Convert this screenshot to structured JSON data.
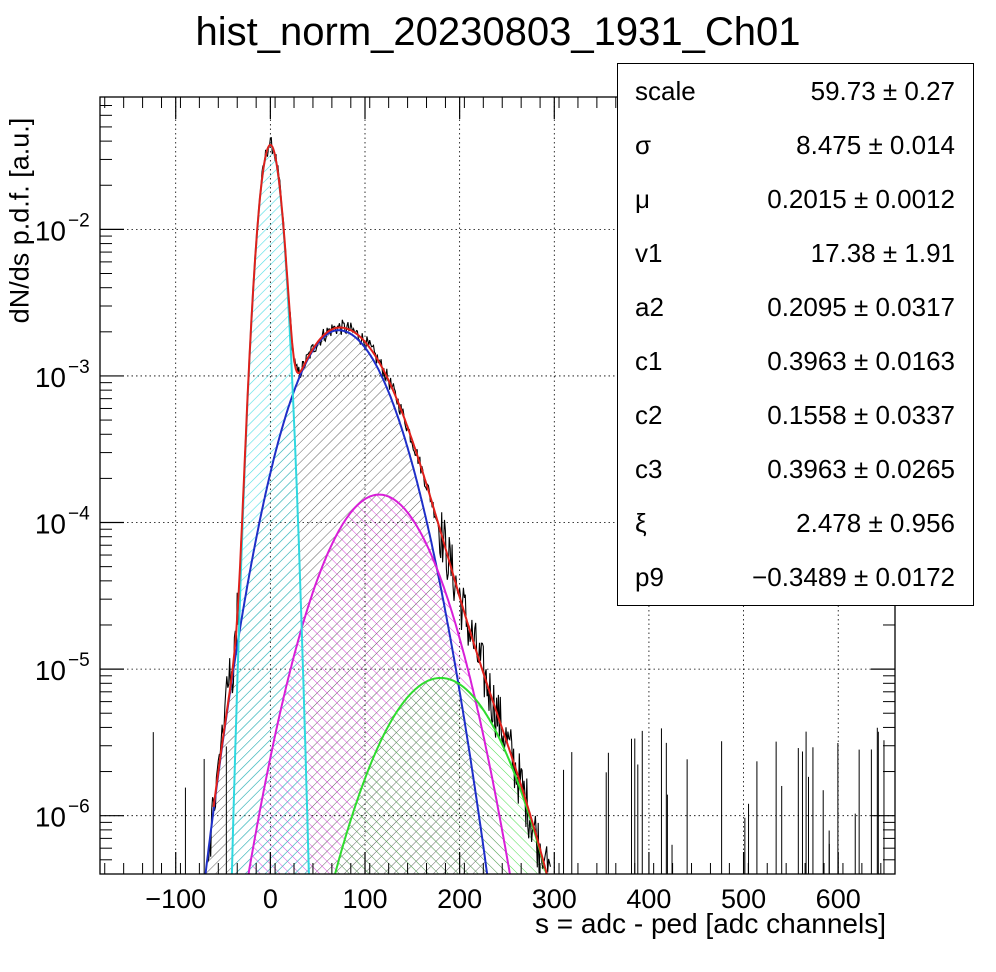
{
  "title": "hist_norm_20230803_1931_Ch01",
  "chart_data": {
    "type": "histogram",
    "xlabel": "s = adc - ped [adc channels]",
    "ylabel": "dN/ds p.d.f. [a.u.]",
    "xlim": [
      -180,
      660
    ],
    "ylim": [
      4e-07,
      0.08
    ],
    "yscale": "log",
    "grid": true,
    "x_ticks": [
      -100,
      0,
      100,
      200,
      300,
      400,
      500,
      600
    ],
    "y_ticks": [
      {
        "value": 0.01,
        "base": "10",
        "exp": "−2"
      },
      {
        "value": 0.001,
        "base": "10",
        "exp": "−3"
      },
      {
        "value": 0.0001,
        "base": "10",
        "exp": "−4"
      },
      {
        "value": 1e-05,
        "base": "10",
        "exp": "−5"
      },
      {
        "value": 1e-06,
        "base": "10",
        "exp": "−6"
      }
    ],
    "series": [
      {
        "name": "",
        "role": "data histogram",
        "color": "#000000"
      },
      {
        "name": "",
        "role": "total fit",
        "color": "#e0201b"
      },
      {
        "name": "",
        "role": "pedestal component",
        "color": "#2fd8e0",
        "fill": "hatched cyan",
        "peak": [
          0,
          0.0375
        ],
        "sigma": 8.5
      },
      {
        "name": "",
        "role": "1 p.e. component",
        "color": "#1f2fc8",
        "fill": "hatched black",
        "peak": [
          72,
          0.00205
        ]
      },
      {
        "name": "",
        "role": "2 p.e. component",
        "color": "#d81fd8",
        "fill": "hatched magenta",
        "peak": [
          115,
          0.000155
        ]
      },
      {
        "name": "",
        "role": "3 p.e. component",
        "color": "#2fdc2f",
        "fill": "hatched green",
        "peak": [
          180,
          8.7e-06
        ]
      }
    ]
  },
  "stats": [
    {
      "name": "scale",
      "value": "59.73 ± 0.27"
    },
    {
      "name": "σ",
      "value": "8.475 ± 0.014"
    },
    {
      "name": "μ",
      "value": "0.2015 ± 0.0012"
    },
    {
      "name": "v1",
      "value": "17.38 ± 1.91"
    },
    {
      "name": "a2",
      "value": "0.2095 ± 0.0317"
    },
    {
      "name": "c1",
      "value": "0.3963 ± 0.0163"
    },
    {
      "name": "c2",
      "value": "0.1558 ± 0.0337"
    },
    {
      "name": "c3",
      "value": "0.3963 ± 0.0265"
    },
    {
      "name": "ξ",
      "value": "2.478 ± 0.956"
    },
    {
      "name": "p9",
      "value": "−0.3489 ± 0.0172"
    }
  ]
}
